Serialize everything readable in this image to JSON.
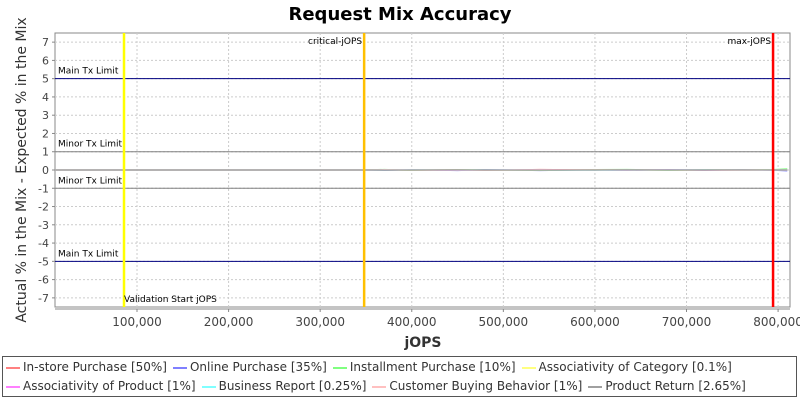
{
  "chart_data": {
    "type": "line",
    "title": "Request Mix Accuracy",
    "xlabel": "jOPS",
    "ylabel": "Actual % in the Mix - Expected % in the Mix",
    "xlim": [
      10450,
      813000
    ],
    "ylim": [
      -7.5,
      7.5
    ],
    "grid": true,
    "legend_position": "bottom",
    "x_ticks": [
      "100,000",
      "200,000",
      "300,000",
      "400,000",
      "500,000",
      "600,000",
      "700,000",
      "800,000"
    ],
    "x_tick_values": [
      100000,
      200000,
      300000,
      400000,
      500000,
      600000,
      700000,
      800000
    ],
    "y_ticks": [
      7,
      6,
      5,
      4,
      3,
      2,
      1,
      0,
      -1,
      -2,
      -3,
      -4,
      -5,
      -6,
      -7
    ],
    "threshold_lines": [
      {
        "label": "Main Tx Limit",
        "value": 5,
        "color": "#000080"
      },
      {
        "label": "Minor Tx Limit",
        "value": 1,
        "color": "#808080"
      },
      {
        "label": "Minor Tx Limit",
        "value": -1,
        "color": "#808080"
      },
      {
        "label": "Main Tx Limit",
        "value": -5,
        "color": "#000080"
      }
    ],
    "vertical_markers": [
      {
        "label": "Validation Start jOPS",
        "value": 85800,
        "color": "#ffff00"
      },
      {
        "label": "critical-jOPS",
        "value": 348000,
        "color": "#ffc000"
      },
      {
        "label": "max-jOPS",
        "value": 794500,
        "color": "#ff0000"
      }
    ],
    "x": [
      10450,
      348000,
      370000,
      400000,
      450000,
      480000,
      540000,
      600000,
      635000,
      680000,
      720000,
      760000,
      794500,
      810000
    ],
    "series": [
      {
        "name": "In-store Purchase [50%]",
        "color": "#ff8080",
        "values": [
          0,
          0,
          0.02,
          -0.01,
          0.02,
          -0.02,
          0.03,
          0,
          0.02,
          -0.01,
          0.02,
          0,
          0.01,
          0
        ]
      },
      {
        "name": "Online Purchase [35%]",
        "color": "#8080ff",
        "values": [
          0,
          0,
          -0.02,
          0.01,
          -0.03,
          0.02,
          -0.03,
          0.01,
          -0.02,
          0.02,
          -0.02,
          0.01,
          -0.01,
          -0.05
        ]
      },
      {
        "name": "Installment Purchase [10%]",
        "color": "#80ff80",
        "values": [
          0,
          0,
          0.03,
          -0.02,
          0.01,
          0,
          -0.02,
          0.02,
          0.03,
          -0.02,
          0.01,
          -0.02,
          0.02,
          0.06
        ]
      },
      {
        "name": "Associativity of Category [0.1%]",
        "color": "#ffff80",
        "values": [
          0,
          0,
          0,
          0,
          0,
          0,
          0,
          0,
          0,
          0,
          0,
          0,
          0,
          0
        ]
      },
      {
        "name": "Associativity of Product [1%]",
        "color": "#ff80ff",
        "values": [
          0,
          0,
          0.01,
          0,
          -0.01,
          0,
          0.01,
          0,
          0,
          0.01,
          0,
          -0.01,
          0,
          0
        ]
      },
      {
        "name": "Business Report [0.25%]",
        "color": "#80ffff",
        "values": [
          0,
          0,
          0,
          0.01,
          0,
          0,
          0,
          -0.01,
          0,
          0,
          0.01,
          0,
          0,
          0
        ]
      },
      {
        "name": "Customer Buying Behavior [1%]",
        "color": "#ffc0c0",
        "values": [
          0,
          0,
          0.01,
          0,
          0,
          -0.01,
          0,
          0.01,
          0,
          0,
          -0.01,
          0,
          0,
          0
        ]
      },
      {
        "name": "Product Return [2.65%]",
        "color": "#a0a0a0",
        "values": [
          0,
          0,
          -0.01,
          0,
          0.01,
          0,
          -0.01,
          0,
          0.01,
          0,
          0,
          0.01,
          0,
          0
        ]
      }
    ]
  }
}
